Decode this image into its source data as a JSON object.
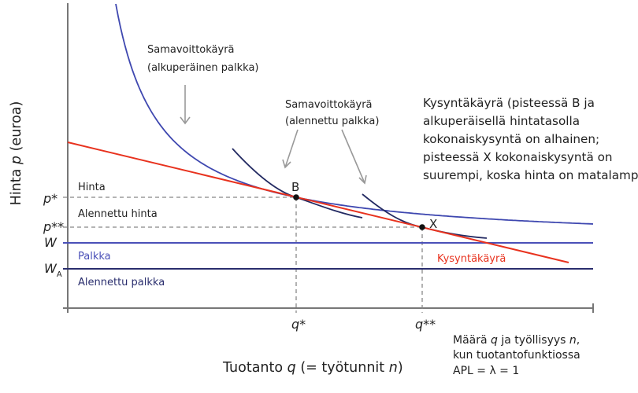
{
  "colors": {
    "axis": "#777777",
    "wage_line": "#4a50b8",
    "reduced_wage_line": "#2a2e6e",
    "isoprofit_original": "#3f48b0",
    "isoprofit_reduced": "#232a62",
    "demand": "#e8321e",
    "arrow": "#999999",
    "dashed": "#888888"
  },
  "y_axis": {
    "label_pre": "Hinta ",
    "label_var": "p",
    "label_post": " (euroa)"
  },
  "x_axis": {
    "label_pre": "Tuotanto ",
    "label_var": "q",
    "label_mid": " (= työtunnit ",
    "label_var2": "n",
    "label_post": ")"
  },
  "y_ticks": {
    "p_star": "p*",
    "p_star2": "p**",
    "w": "W",
    "wa_main": "W",
    "wa_sub": "A"
  },
  "x_ticks": {
    "q_star": "q*",
    "q_star2": "q**"
  },
  "band_labels": {
    "price": "Hinta",
    "reduced_price": "Alennettu hinta",
    "wage": "Palkka",
    "reduced_wage": "Alennettu palkka"
  },
  "points": {
    "b": "B",
    "x": "X"
  },
  "annotations": {
    "isoprofit_original": [
      "Samavoittokäyrä",
      "(alkuperäinen palkka)"
    ],
    "isoprofit_reduced": [
      "Samavoittokäyrä",
      "(alennettu palkka)"
    ],
    "demand_note": [
      "Kysyntäkäyrä (pisteessä B ja",
      "alkuperäisellä hintatasolla",
      "kokonaiskysyntä on alhainen;",
      "pisteessä X kokonaiskysyntä on",
      "suurempi, koska hinta on matalampi)"
    ],
    "demand_label": "Kysyntäkäyrä",
    "quantity_note": {
      "l1_a": "Määrä ",
      "l1_q": "q",
      "l1_b": " ja työllisyys ",
      "l1_n": "n",
      "l1_c": ",",
      "l2": "kun tuotantofunktiossa",
      "l3": "APL = λ = 1"
    }
  }
}
